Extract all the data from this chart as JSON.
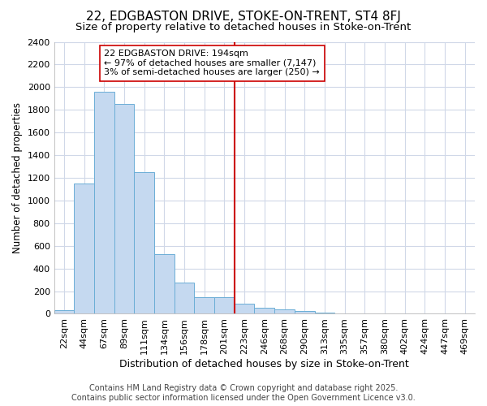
{
  "title1": "22, EDGBASTON DRIVE, STOKE-ON-TRENT, ST4 8FJ",
  "title2": "Size of property relative to detached houses in Stoke-on-Trent",
  "xlabel": "Distribution of detached houses by size in Stoke-on-Trent",
  "ylabel": "Number of detached properties",
  "categories": [
    "22sqm",
    "44sqm",
    "67sqm",
    "89sqm",
    "111sqm",
    "134sqm",
    "156sqm",
    "178sqm",
    "201sqm",
    "223sqm",
    "246sqm",
    "268sqm",
    "290sqm",
    "313sqm",
    "335sqm",
    "357sqm",
    "380sqm",
    "402sqm",
    "424sqm",
    "447sqm",
    "469sqm"
  ],
  "values": [
    30,
    1150,
    1960,
    1850,
    1250,
    525,
    275,
    150,
    150,
    90,
    50,
    40,
    25,
    10,
    5,
    5,
    3,
    3,
    2,
    2,
    2
  ],
  "bar_color": "#c5d9f0",
  "bar_edge_color": "#6baed6",
  "background_color": "#ffffff",
  "grid_color": "#d0d8e8",
  "vline_x": 8.5,
  "vline_color": "#cc0000",
  "annotation_text": "22 EDGBASTON DRIVE: 194sqm\n← 97% of detached houses are smaller (7,147)\n3% of semi-detached houses are larger (250) →",
  "annotation_box_color": "white",
  "annotation_box_edge": "#cc0000",
  "ylim": [
    0,
    2400
  ],
  "yticks": [
    0,
    200,
    400,
    600,
    800,
    1000,
    1200,
    1400,
    1600,
    1800,
    2000,
    2200,
    2400
  ],
  "footer": "Contains HM Land Registry data © Crown copyright and database right 2025.\nContains public sector information licensed under the Open Government Licence v3.0.",
  "title1_fontsize": 11,
  "title2_fontsize": 9.5,
  "xlabel_fontsize": 9,
  "ylabel_fontsize": 8.5,
  "footer_fontsize": 7,
  "annotation_fontsize": 8,
  "tick_fontsize": 8
}
